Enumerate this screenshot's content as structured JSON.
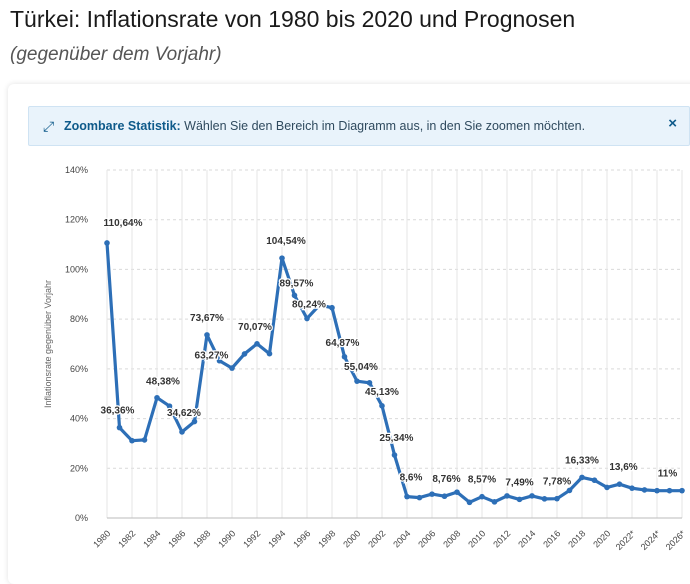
{
  "page": {
    "title": "Türkei: Inflationsrate von 1980 bis 2020 und Prognosen",
    "subtitle": "(gegenüber dem Vorjahr)"
  },
  "banner": {
    "label": "Zoombare Statistik:",
    "text": "Wählen Sie den Bereich im Diagramm aus, in den Sie zoomen möchten.",
    "icon": "zoom-expand-icon",
    "close_icon": "close-icon"
  },
  "chart_data": {
    "type": "line",
    "ylabel": "Inflationsrate gegenüber Vorjahr",
    "ylim": [
      0,
      140
    ],
    "yticks": [
      "0%",
      "20%",
      "40%",
      "60%",
      "80%",
      "100%",
      "120%",
      "140%"
    ],
    "xticks": [
      "1980",
      "1982",
      "1984",
      "1986",
      "1988",
      "1990",
      "1992",
      "1994",
      "1996",
      "1998",
      "2000",
      "2002",
      "2004",
      "2006",
      "2008",
      "2010",
      "2012",
      "2014",
      "2016",
      "2018",
      "2020",
      "2022*",
      "2024*",
      "2026*"
    ],
    "grid": true,
    "color": "#2d6fb7",
    "series": [
      {
        "x": [
          1980,
          1981,
          1982,
          1983,
          1984,
          1985,
          1986,
          1987,
          1988,
          1989,
          1990,
          1991,
          1992,
          1993,
          1994,
          1995,
          1996,
          1997,
          1998,
          1999,
          2000,
          2001,
          2002,
          2003,
          2004,
          2005,
          2006,
          2007,
          2008,
          2009,
          2010,
          2011,
          2012,
          2013,
          2014,
          2015,
          2016,
          2017,
          2018,
          2019,
          2020,
          2021,
          2022,
          2023,
          2024,
          2025,
          2026
        ],
        "values": [
          110.64,
          36.36,
          31.1,
          31.4,
          48.38,
          45,
          34.62,
          38.8,
          73.67,
          63.27,
          60.3,
          66,
          70.07,
          66.1,
          104.54,
          89.57,
          80.24,
          85.7,
          84.6,
          64.87,
          55.04,
          54.4,
          45.13,
          25.34,
          8.6,
          8.2,
          9.6,
          8.76,
          10.4,
          6.3,
          8.57,
          6.5,
          8.9,
          7.49,
          8.9,
          7.7,
          7.78,
          11.1,
          16.33,
          15.2,
          12.3,
          13.6,
          12.0,
          11.3,
          11.0,
          11.0,
          11.0
        ]
      }
    ],
    "data_labels": [
      {
        "x": 1980,
        "y": 110.64,
        "text": "110,64%",
        "dx": 16,
        "dy": -17
      },
      {
        "x": 1981,
        "y": 36.36,
        "text": "36,36%",
        "dx": -2,
        "dy": -14
      },
      {
        "x": 1984,
        "y": 48.38,
        "text": "48,38%",
        "dx": 6,
        "dy": -13
      },
      {
        "x": 1986,
        "y": 34.62,
        "text": "34,62%",
        "dx": 2,
        "dy": -16
      },
      {
        "x": 1988,
        "y": 73.67,
        "text": "73,67%",
        "dx": 0,
        "dy": -14
      },
      {
        "x": 1989,
        "y": 63.27,
        "text": "63,27%",
        "dx": -8,
        "dy": -2
      },
      {
        "x": 1992,
        "y": 70.07,
        "text": "70,07%",
        "dx": -2,
        "dy": -14
      },
      {
        "x": 1994,
        "y": 104.54,
        "text": "104,54%",
        "dx": 4,
        "dy": -14
      },
      {
        "x": 1995,
        "y": 89.57,
        "text": "89,57%",
        "dx": 2,
        "dy": -9
      },
      {
        "x": 1996,
        "y": 80.24,
        "text": "80,24%",
        "dx": 2,
        "dy": -11
      },
      {
        "x": 1999,
        "y": 64.87,
        "text": "64,87%",
        "dx": -2,
        "dy": -11
      },
      {
        "x": 2000,
        "y": 55.04,
        "text": "55,04%",
        "dx": 4,
        "dy": -11
      },
      {
        "x": 2002,
        "y": 45.13,
        "text": "45,13%",
        "dx": 0,
        "dy": -11
      },
      {
        "x": 2003,
        "y": 25.34,
        "text": "25,34%",
        "dx": 2,
        "dy": -14
      },
      {
        "x": 2004,
        "y": 8.6,
        "text": "8,6%",
        "dx": 4,
        "dy": -16
      },
      {
        "x": 2007,
        "y": 8.76,
        "text": "8,76%",
        "dx": 2,
        "dy": -14
      },
      {
        "x": 2010,
        "y": 8.57,
        "text": "8,57%",
        "dx": 0,
        "dy": -14
      },
      {
        "x": 2013,
        "y": 7.49,
        "text": "7,49%",
        "dx": 0,
        "dy": -14
      },
      {
        "x": 2016,
        "y": 7.78,
        "text": "7,78%",
        "dx": 0,
        "dy": -14
      },
      {
        "x": 2018,
        "y": 16.33,
        "text": "16,33%",
        "dx": 0,
        "dy": -14
      },
      {
        "x": 2021,
        "y": 13.6,
        "text": "13,6%",
        "dx": 4,
        "dy": -14
      },
      {
        "x": 2025,
        "y": 11.0,
        "text": "11%",
        "dx": -2,
        "dy": -14
      }
    ]
  }
}
